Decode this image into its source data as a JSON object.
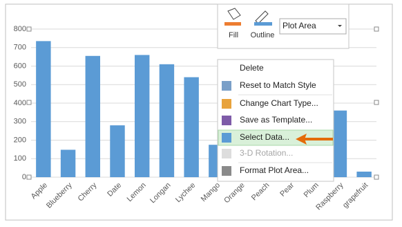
{
  "chart_data": {
    "type": "bar",
    "categories": [
      "Apple",
      "Blueberry",
      "Cherry",
      "Date",
      "Lemon",
      "Longan",
      "Lychee",
      "Mango",
      "Orange",
      "Peach",
      "Pear",
      "Plum",
      "Raspberry",
      "grapefruit"
    ],
    "values": [
      735,
      148,
      655,
      280,
      660,
      610,
      540,
      175,
      null,
      null,
      null,
      null,
      360,
      30
    ],
    "color": "#5b9bd5",
    "ylim": [
      0,
      800
    ],
    "yticks": [
      0,
      100,
      200,
      300,
      400,
      500,
      600,
      700,
      800
    ],
    "grid": true
  },
  "toolbar": {
    "fill": "Fill",
    "outline": "Outline",
    "dropdown": "Plot Area"
  },
  "context_menu": {
    "items": [
      "Delete",
      "Reset to Match Style",
      "Change Chart Type...",
      "Save as Template...",
      "Select Data...",
      "3-D Rotation...",
      "Format Plot Area..."
    ],
    "selected_index": 4,
    "disabled_index": 5
  }
}
